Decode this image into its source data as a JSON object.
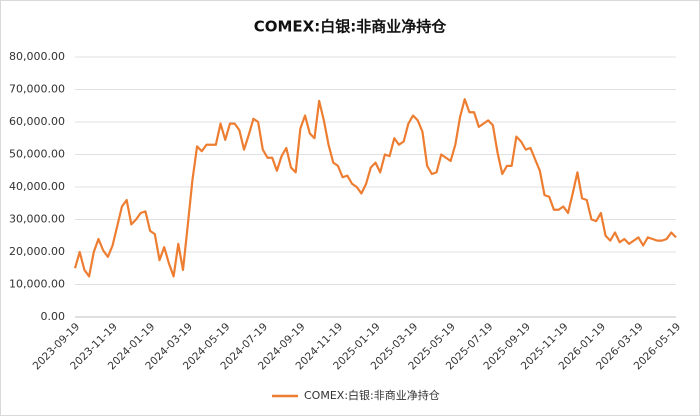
{
  "chart_data": {
    "type": "line",
    "title": "COMEX:白银:非商业净持仓",
    "categories": [
      "2023-09-19",
      null,
      null,
      null,
      null,
      null,
      null,
      null,
      "2023-11-19",
      null,
      null,
      null,
      null,
      null,
      null,
      null,
      "2024-01-19",
      null,
      null,
      null,
      null,
      null,
      null,
      null,
      "2024-03-19",
      null,
      null,
      null,
      null,
      null,
      null,
      null,
      "2024-05-19",
      null,
      null,
      null,
      null,
      null,
      null,
      null,
      "2024-07-19",
      null,
      null,
      null,
      null,
      null,
      null,
      null,
      "2024-09-19",
      null,
      null,
      null,
      null,
      null,
      null,
      null,
      "2024-11-19",
      null,
      null,
      null,
      null,
      null,
      null,
      null,
      "2025-01-19",
      null,
      null,
      null,
      null,
      null,
      null,
      null,
      "2025-03-19",
      null,
      null,
      null,
      null,
      null,
      null,
      null,
      "2025-05-19",
      null,
      null,
      null,
      null,
      null,
      null,
      null,
      "2025-07-19",
      null,
      null,
      null,
      null,
      null,
      null,
      null,
      "2025-09-19",
      null,
      null,
      null,
      null,
      null,
      null,
      null,
      "2025-11-19",
      null,
      null,
      null,
      null,
      null,
      null,
      null,
      "2026-01-19",
      null,
      null,
      null,
      null,
      null,
      null,
      null,
      "2026-03-19",
      null,
      null,
      null,
      null,
      null,
      null,
      null,
      "2026-05-19"
    ],
    "series": [
      {
        "name": "COMEX:白银:非商业净持仓",
        "color": "#ED7D31",
        "values": [
          15000,
          20000,
          14500,
          12500,
          20000,
          24000,
          20500,
          18500,
          22000,
          28000,
          34000,
          36000,
          28500,
          30000,
          32000,
          32500,
          26500,
          25500,
          17500,
          21500,
          16500,
          12500,
          22500,
          14500,
          28000,
          42000,
          52500,
          51000,
          53000,
          53000,
          53000,
          59500,
          54500,
          59500,
          59500,
          57500,
          51500,
          56000,
          61000,
          60000,
          51500,
          49000,
          49000,
          45000,
          49500,
          52000,
          46000,
          44500,
          58000,
          62000,
          56500,
          55000,
          66500,
          60500,
          53000,
          47500,
          46500,
          43000,
          43500,
          41000,
          40000,
          38000,
          41000,
          46000,
          47500,
          44500,
          50000,
          49500,
          55000,
          53000,
          54000,
          59500,
          62000,
          60500,
          57000,
          46500,
          44000,
          44500,
          50000,
          49000,
          48000,
          53000,
          61500,
          67000,
          63000,
          63000,
          58500,
          59500,
          60500,
          59000,
          50500,
          44000,
          46500,
          46500,
          55500,
          54000,
          51500,
          52000,
          48500,
          45000,
          37500,
          37000,
          33000,
          33000,
          34000,
          32000,
          38000,
          44500,
          36500,
          36000,
          30000,
          29500,
          32000,
          25000,
          23500,
          26000,
          23000,
          24000,
          22500,
          23500,
          24500,
          22000,
          24500,
          24000,
          23500,
          23500,
          24000,
          26000,
          24500
        ]
      }
    ],
    "ylim": [
      0,
      80000
    ],
    "yticks": [
      {
        "value": 0,
        "label": "0.00"
      },
      {
        "value": 10000,
        "label": "10,000.00"
      },
      {
        "value": 20000,
        "label": "20,000.00"
      },
      {
        "value": 30000,
        "label": "30,000.00"
      },
      {
        "value": 40000,
        "label": "40,000.00"
      },
      {
        "value": 50000,
        "label": "50,000.00"
      },
      {
        "value": 60000,
        "label": "60,000.00"
      },
      {
        "value": 70000,
        "label": "70,000.00"
      },
      {
        "value": 80000,
        "label": "80,000.00"
      }
    ],
    "grid": true,
    "legend": "bottom"
  }
}
